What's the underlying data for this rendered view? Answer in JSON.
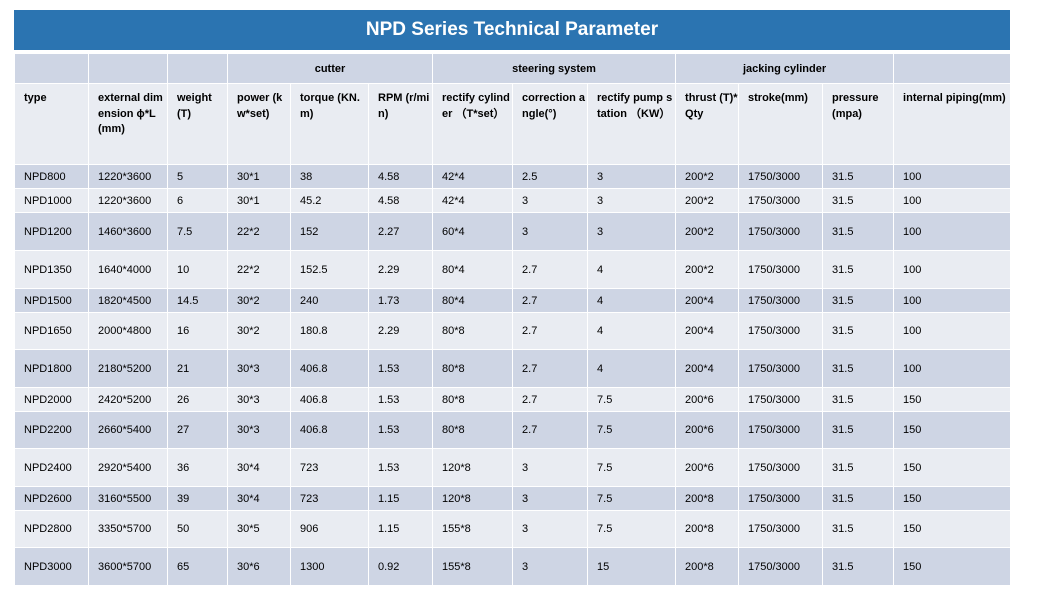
{
  "title": "NPD Series Technical Parameter",
  "groups": {
    "cutter": "cutter",
    "steering": "steering system",
    "jacking": "jacking cylinder"
  },
  "headers": {
    "type": "type",
    "external_dimension": "external dimension ϕ*L(mm)",
    "weight": "weight (T)",
    "power": "power (kw*set)",
    "torque": "torque (KN.m)",
    "rpm": "RPM (r/min)",
    "rectify_cylinder": "rectify cylinder （T*set）",
    "correction_angle": "correction angle(°)",
    "rectify_pump_station": "rectify pump station （KW）",
    "thrust": "thrust (T)*Qty",
    "stroke": "stroke(mm)",
    "pressure": "pressure (mpa)",
    "internal_piping": "internal piping(mm)"
  },
  "rows": [
    {
      "type": "NPD800",
      "dim": "1220*3600",
      "weight": "5",
      "power": "30*1",
      "torque": "38",
      "rpm": "4.58",
      "rectify": "42*4",
      "angle": "2.5",
      "pump": "3",
      "thrust": "200*2",
      "stroke": "1750/3000",
      "pressure": "31.5",
      "piping": "100"
    },
    {
      "type": "NPD1000",
      "dim": "1220*3600",
      "weight": "6",
      "power": "30*1",
      "torque": "45.2",
      "rpm": "4.58",
      "rectify": "42*4",
      "angle": "3",
      "pump": "3",
      "thrust": "200*2",
      "stroke": "1750/3000",
      "pressure": "31.5",
      "piping": "100"
    },
    {
      "type": "NPD1200",
      "dim": "1460*3600",
      "weight": "7.5",
      "power": "22*2",
      "torque": "152",
      "rpm": "2.27",
      "rectify": "60*4",
      "angle": "3",
      "pump": "3",
      "thrust": "200*2",
      "stroke": "1750/3000",
      "pressure": "31.5",
      "piping": "100"
    },
    {
      "type": "NPD1350",
      "dim": "1640*4000",
      "weight": "10",
      "power": "22*2",
      "torque": "152.5",
      "rpm": "2.29",
      "rectify": "80*4",
      "angle": "2.7",
      "pump": "4",
      "thrust": "200*2",
      "stroke": "1750/3000",
      "pressure": "31.5",
      "piping": "100"
    },
    {
      "type": "NPD1500",
      "dim": "1820*4500",
      "weight": "14.5",
      "power": "30*2",
      "torque": "240",
      "rpm": "1.73",
      "rectify": "80*4",
      "angle": "2.7",
      "pump": "4",
      "thrust": "200*4",
      "stroke": "1750/3000",
      "pressure": "31.5",
      "piping": "100"
    },
    {
      "type": "NPD1650",
      "dim": "2000*4800",
      "weight": "16",
      "power": "30*2",
      "torque": "180.8",
      "rpm": "2.29",
      "rectify": "80*8",
      "angle": "2.7",
      "pump": "4",
      "thrust": "200*4",
      "stroke": "1750/3000",
      "pressure": "31.5",
      "piping": "100"
    },
    {
      "type": "NPD1800",
      "dim": "2180*5200",
      "weight": "21",
      "power": "30*3",
      "torque": "406.8",
      "rpm": "1.53",
      "rectify": "80*8",
      "angle": "2.7",
      "pump": "4",
      "thrust": "200*4",
      "stroke": "1750/3000",
      "pressure": "31.5",
      "piping": "100"
    },
    {
      "type": "NPD2000",
      "dim": "2420*5200",
      "weight": "26",
      "power": "30*3",
      "torque": "406.8",
      "rpm": "1.53",
      "rectify": "80*8",
      "angle": "2.7",
      "pump": "7.5",
      "thrust": "200*6",
      "stroke": "1750/3000",
      "pressure": "31.5",
      "piping": "150"
    },
    {
      "type": "NPD2200",
      "dim": "2660*5400",
      "weight": "27",
      "power": "30*3",
      "torque": "406.8",
      "rpm": "1.53",
      "rectify": "80*8",
      "angle": "2.7",
      "pump": "7.5",
      "thrust": "200*6",
      "stroke": "1750/3000",
      "pressure": "31.5",
      "piping": "150"
    },
    {
      "type": "NPD2400",
      "dim": "2920*5400",
      "weight": "36",
      "power": "30*4",
      "torque": "723",
      "rpm": "1.53",
      "rectify": "120*8",
      "angle": "3",
      "pump": "7.5",
      "thrust": "200*6",
      "stroke": "1750/3000",
      "pressure": "31.5",
      "piping": "150"
    },
    {
      "type": "NPD2600",
      "dim": "3160*5500",
      "weight": "39",
      "power": "30*4",
      "torque": "723",
      "rpm": "1.15",
      "rectify": "120*8",
      "angle": "3",
      "pump": "7.5",
      "thrust": "200*8",
      "stroke": "1750/3000",
      "pressure": "31.5",
      "piping": "150"
    },
    {
      "type": "NPD2800",
      "dim": "3350*5700",
      "weight": "50",
      "power": "30*5",
      "torque": "906",
      "rpm": "1.15",
      "rectify": "155*8",
      "angle": "3",
      "pump": "7.5",
      "thrust": "200*8",
      "stroke": "1750/3000",
      "pressure": "31.5",
      "piping": "150"
    },
    {
      "type": "NPD3000",
      "dim": "3600*5700",
      "weight": "65",
      "power": "30*6",
      "torque": "1300",
      "rpm": "0.92",
      "rectify": "155*8",
      "angle": "3",
      "pump": "15",
      "thrust": "200*8",
      "stroke": "1750/3000",
      "pressure": "31.5",
      "piping": "150"
    }
  ]
}
